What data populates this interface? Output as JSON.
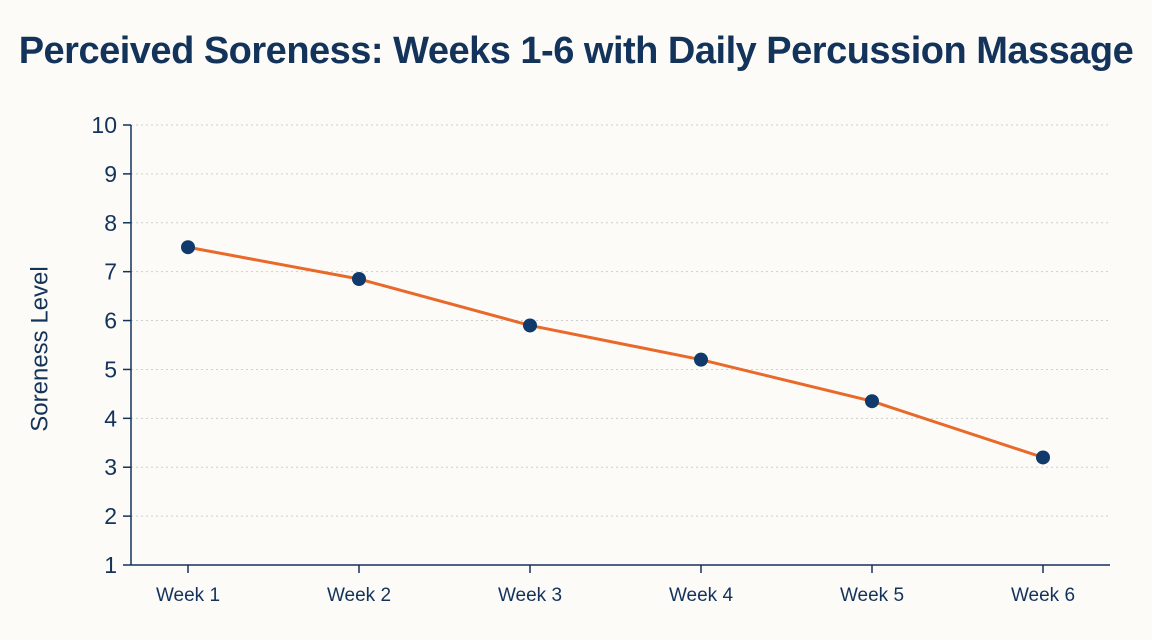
{
  "chart_data": {
    "type": "line",
    "title": "Perceived Soreness: Weeks 1-6 with Daily Percussion Massage",
    "xlabel": "",
    "ylabel": "Soreness Level",
    "categories": [
      "Week 1",
      "Week 2",
      "Week 3",
      "Week 4",
      "Week 5",
      "Week 6"
    ],
    "series": [
      {
        "values": [
          7.5,
          6.85,
          5.9,
          5.2,
          4.35,
          3.2
        ]
      }
    ],
    "ylim": [
      1,
      10
    ],
    "yticks": [
      1,
      2,
      3,
      4,
      5,
      6,
      7,
      8,
      9,
      10
    ],
    "grid": true,
    "legend": "none",
    "colors": {
      "line": "#e8692a",
      "marker": "#0f3a6b",
      "text": "#13335b",
      "grid": "#cfcfcf",
      "axis": "#13335b",
      "background": "#fcfbf7"
    }
  }
}
